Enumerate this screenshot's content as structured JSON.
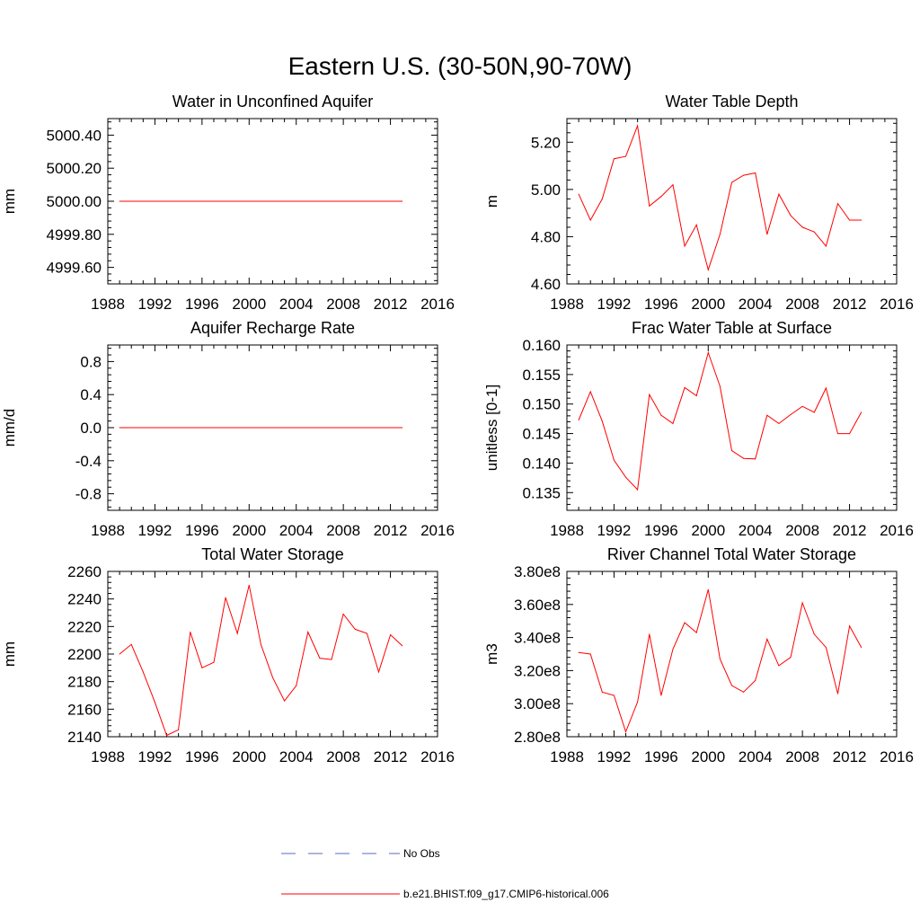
{
  "title": "Eastern U.S. (30-50N,90-70W)",
  "legend": [
    {
      "label": "No Obs",
      "color": "#5a6bbf",
      "style": "dashed"
    },
    {
      "label": "b.e21.BHIST.f09_g17.CMIP6-historical.006",
      "color": "#ff0000",
      "style": "solid"
    }
  ],
  "chart_data": [
    {
      "type": "line",
      "title": "Water in Unconfined Aquifer",
      "xlabel": "",
      "ylabel": "mm",
      "xlim": [
        1988,
        2016
      ],
      "ylim": [
        4999.5,
        5000.5
      ],
      "xticks": [
        1988,
        1992,
        1996,
        2000,
        2004,
        2008,
        2012,
        2016
      ],
      "yticks": [
        4999.6,
        4999.8,
        5000.0,
        5000.2,
        5000.4
      ],
      "ytick_labels": [
        "4999.60",
        "4999.80",
        "5000.00",
        "5000.20",
        "5000.40"
      ],
      "x": [
        1989,
        1990,
        1991,
        1992,
        1993,
        1994,
        1995,
        1996,
        1997,
        1998,
        1999,
        2000,
        2001,
        2002,
        2003,
        2004,
        2005,
        2006,
        2007,
        2008,
        2009,
        2010,
        2011,
        2012,
        2013
      ],
      "series": [
        {
          "name": "b.e21.BHIST.f09_g17.CMIP6-historical.006",
          "color": "#ff0000",
          "values": [
            5000.0,
            5000.0,
            5000.0,
            5000.0,
            5000.0,
            5000.0,
            5000.0,
            5000.0,
            5000.0,
            5000.0,
            5000.0,
            5000.0,
            5000.0,
            5000.0,
            5000.0,
            5000.0,
            5000.0,
            5000.0,
            5000.0,
            5000.0,
            5000.0,
            5000.0,
            5000.0,
            5000.0,
            5000.0
          ]
        }
      ]
    },
    {
      "type": "line",
      "title": "Water Table Depth",
      "xlabel": "",
      "ylabel": "m",
      "xlim": [
        1988,
        2016
      ],
      "ylim": [
        4.6,
        5.3
      ],
      "xticks": [
        1988,
        1992,
        1996,
        2000,
        2004,
        2008,
        2012,
        2016
      ],
      "yticks": [
        4.6,
        4.8,
        5.0,
        5.2
      ],
      "ytick_labels": [
        "4.60",
        "4.80",
        "5.00",
        "5.20"
      ],
      "x": [
        1989,
        1990,
        1991,
        1992,
        1993,
        1994,
        1995,
        1996,
        1997,
        1998,
        1999,
        2000,
        2001,
        2002,
        2003,
        2004,
        2005,
        2006,
        2007,
        2008,
        2009,
        2010,
        2011,
        2012,
        2013
      ],
      "series": [
        {
          "name": "b.e21.BHIST.f09_g17.CMIP6-historical.006",
          "color": "#ff0000",
          "values": [
            4.98,
            4.87,
            4.96,
            5.13,
            5.14,
            5.27,
            4.93,
            4.97,
            5.02,
            4.76,
            4.85,
            4.66,
            4.81,
            5.03,
            5.06,
            5.07,
            4.81,
            4.98,
            4.89,
            4.84,
            4.82,
            4.76,
            4.94,
            4.87,
            4.87
          ]
        }
      ]
    },
    {
      "type": "line",
      "title": "Aquifer Recharge Rate",
      "xlabel": "",
      "ylabel": "mm/d",
      "xlim": [
        1988,
        2016
      ],
      "ylim": [
        -1.0,
        1.0
      ],
      "xticks": [
        1988,
        1992,
        1996,
        2000,
        2004,
        2008,
        2012,
        2016
      ],
      "yticks": [
        -0.8,
        -0.4,
        0.0,
        0.4,
        0.8
      ],
      "ytick_labels": [
        "-0.8",
        "-0.4",
        "0.0",
        "0.4",
        "0.8"
      ],
      "x": [
        1989,
        1990,
        1991,
        1992,
        1993,
        1994,
        1995,
        1996,
        1997,
        1998,
        1999,
        2000,
        2001,
        2002,
        2003,
        2004,
        2005,
        2006,
        2007,
        2008,
        2009,
        2010,
        2011,
        2012,
        2013
      ],
      "series": [
        {
          "name": "b.e21.BHIST.f09_g17.CMIP6-historical.006",
          "color": "#ff0000",
          "values": [
            0.0,
            0.0,
            0.0,
            0.0,
            0.0,
            0.0,
            0.0,
            0.0,
            0.0,
            0.0,
            0.0,
            0.0,
            0.0,
            0.0,
            0.0,
            0.0,
            0.0,
            0.0,
            0.0,
            0.0,
            0.0,
            0.0,
            0.0,
            0.0,
            0.0
          ]
        }
      ]
    },
    {
      "type": "line",
      "title": "Frac Water Table at Surface",
      "xlabel": "",
      "ylabel": "unitless [0-1]",
      "xlim": [
        1988,
        2016
      ],
      "ylim": [
        0.132,
        0.16
      ],
      "xticks": [
        1988,
        1992,
        1996,
        2000,
        2004,
        2008,
        2012,
        2016
      ],
      "yticks": [
        0.135,
        0.14,
        0.145,
        0.15,
        0.155,
        0.16
      ],
      "ytick_labels": [
        "0.135",
        "0.140",
        "0.145",
        "0.150",
        "0.155",
        "0.160"
      ],
      "x": [
        1989,
        1990,
        1991,
        1992,
        1993,
        1994,
        1995,
        1996,
        1997,
        1998,
        1999,
        2000,
        2001,
        2002,
        2003,
        2004,
        2005,
        2006,
        2007,
        2008,
        2009,
        2010,
        2011,
        2012,
        2013
      ],
      "series": [
        {
          "name": "b.e21.BHIST.f09_g17.CMIP6-historical.006",
          "color": "#ff0000",
          "values": [
            0.1473,
            0.1521,
            0.1471,
            0.1405,
            0.1376,
            0.1355,
            0.1516,
            0.1481,
            0.1467,
            0.1528,
            0.1514,
            0.1587,
            0.153,
            0.1421,
            0.1408,
            0.1407,
            0.1481,
            0.1467,
            0.1482,
            0.1496,
            0.1486,
            0.1527,
            0.145,
            0.145,
            0.1486
          ]
        }
      ]
    },
    {
      "type": "line",
      "title": "Total Water Storage",
      "xlabel": "",
      "ylabel": "mm",
      "xlim": [
        1988,
        2016
      ],
      "ylim": [
        2140,
        2260
      ],
      "xticks": [
        1988,
        1992,
        1996,
        2000,
        2004,
        2008,
        2012,
        2016
      ],
      "yticks": [
        2140,
        2160,
        2180,
        2200,
        2220,
        2240,
        2260
      ],
      "ytick_labels": [
        "2140",
        "2160",
        "2180",
        "2200",
        "2220",
        "2240",
        "2260"
      ],
      "x": [
        1989,
        1990,
        1991,
        1992,
        1993,
        1994,
        1995,
        1996,
        1997,
        1998,
        1999,
        2000,
        2001,
        2002,
        2003,
        2004,
        2005,
        2006,
        2007,
        2008,
        2009,
        2010,
        2011,
        2012,
        2013
      ],
      "series": [
        {
          "name": "b.e21.BHIST.f09_g17.CMIP6-historical.006",
          "color": "#ff0000",
          "values": [
            2200,
            2207,
            2187,
            2165,
            2141,
            2145,
            2216,
            2190,
            2194,
            2241,
            2215,
            2250,
            2207,
            2183,
            2166,
            2177,
            2216,
            2197,
            2196,
            2229,
            2218,
            2215,
            2187,
            2214,
            2206
          ]
        }
      ]
    },
    {
      "type": "line",
      "title": "River Channel Total Water Storage",
      "xlabel": "",
      "ylabel": "m3",
      "xlim": [
        1988,
        2016
      ],
      "ylim": [
        280000000,
        380000000
      ],
      "xticks": [
        1988,
        1992,
        1996,
        2000,
        2004,
        2008,
        2012,
        2016
      ],
      "yticks": [
        280000000,
        300000000,
        320000000,
        340000000,
        360000000,
        380000000
      ],
      "ytick_labels": [
        "2.80e8",
        "3.00e8",
        "3.20e8",
        "3.40e8",
        "3.60e8",
        "3.80e8"
      ],
      "x": [
        1989,
        1990,
        1991,
        1992,
        1993,
        1994,
        1995,
        1996,
        1997,
        1998,
        1999,
        2000,
        2001,
        2002,
        2003,
        2004,
        2005,
        2006,
        2007,
        2008,
        2009,
        2010,
        2011,
        2012,
        2013
      ],
      "series": [
        {
          "name": "b.e21.BHIST.f09_g17.CMIP6-historical.006",
          "color": "#ff0000",
          "values": [
            331000000,
            330000000,
            307000000,
            305000000,
            283000000,
            301000000,
            342000000,
            305000000,
            333000000,
            349000000,
            343000000,
            369000000,
            327000000,
            311000000,
            307000000,
            314000000,
            339000000,
            323000000,
            328000000,
            361000000,
            342000000,
            334000000,
            306000000,
            347000000,
            334000000
          ]
        }
      ]
    }
  ]
}
